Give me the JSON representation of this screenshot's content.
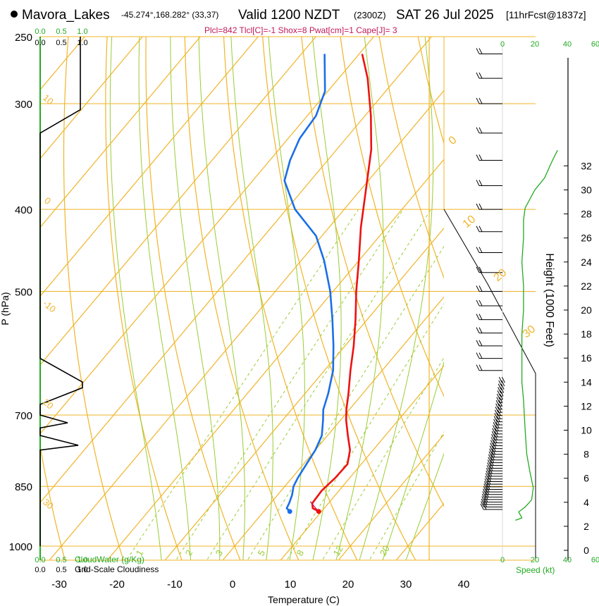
{
  "header": {
    "location": "Mavora_Lakes",
    "coords": "-45.274°,168.282° (33,37)",
    "valid": "Valid 1200 NZDT",
    "utc": "(2300Z)",
    "date": "SAT 26 Jul 2025",
    "forecast": "[11hrFcst@1837z]",
    "indices": "Plcl=842 Tlcl[C]=-1 Shox=8 Pwat[cm]=1 Cape[J]= 3"
  },
  "colors": {
    "temperature": "#ee1111",
    "dewpoint": "#1a6fe8",
    "dry_adiabat": "#f0b428",
    "moist_adiabat": "#99cc33",
    "mixing_ratio": "#99cc33",
    "cloud": "#228b22",
    "black": "#000000"
  },
  "chart_data": {
    "type": "line",
    "title": "Skew-T Log-P Sounding",
    "xlabel": "Temperature (C)",
    "ylabel": "P (hPa)",
    "right_ylabel": "Height (1000 Feet)",
    "x_ticks": [
      -30,
      -20,
      -10,
      0,
      10,
      20,
      30,
      40
    ],
    "p_ticks": [
      250,
      300,
      400,
      500,
      700,
      850,
      1000
    ],
    "height_ticks": [
      0,
      2,
      4,
      6,
      8,
      10,
      12,
      14,
      16,
      18,
      20,
      22,
      24,
      26,
      28,
      30,
      32
    ],
    "temperature": {
      "name": "Temperature",
      "p": [
        910,
        902,
        890,
        860,
        830,
        800,
        770,
        740,
        710,
        690,
        660,
        620,
        580,
        540,
        500,
        460,
        420,
        380,
        340,
        310,
        280,
        262
      ],
      "t": [
        9.5,
        8.0,
        7.2,
        7.0,
        7.5,
        7.6,
        6.0,
        3.5,
        1.0,
        -0.5,
        -2.5,
        -5.5,
        -8.5,
        -12.0,
        -16.0,
        -20.0,
        -24.5,
        -29.0,
        -34.0,
        -39.0,
        -45.0,
        -49.5
      ]
    },
    "dewpoint": {
      "name": "Dewpoint",
      "p": [
        910,
        902,
        890,
        870,
        850,
        830,
        800,
        770,
        740,
        710,
        690,
        660,
        620,
        580,
        540,
        500,
        460,
        430,
        400,
        370,
        350,
        330,
        310,
        290,
        262
      ],
      "td": [
        4.5,
        3.5,
        3.2,
        2.5,
        1.5,
        1.0,
        0.5,
        0.0,
        -1.0,
        -3.0,
        -4.5,
        -6.0,
        -8.5,
        -12.0,
        -16.0,
        -20.5,
        -26.0,
        -31.0,
        -38.5,
        -44.5,
        -46.5,
        -48.0,
        -48.5,
        -50.5,
        -56.0
      ]
    },
    "dry_adiabat_labels": [
      "-10",
      "0",
      "10",
      "20",
      "30"
    ],
    "dry_adiabat_labels_left": [
      "30",
      "20",
      "10",
      "0",
      "-10"
    ],
    "mixing_ratio_labels": [
      "1",
      "2",
      "3",
      "5",
      "8",
      "12",
      "20"
    ],
    "cloud_axis": {
      "water_ticks": [
        "0.0",
        "0.5",
        "1.0"
      ],
      "cover_ticks": [
        "0.0",
        "0.5",
        "1.0"
      ],
      "water_label": "CloudWater (g/Kg)",
      "cover_label": "Grid-Scale Cloudiness",
      "cloudiness_profile": {
        "p": [
          250,
          300,
          305,
          325,
          335,
          560,
          600,
          640,
          650,
          680,
          700,
          715,
          725,
          740,
          760,
          770,
          1000
        ],
        "value": [
          0.95,
          0.95,
          0.95,
          0.0,
          0.0,
          0.0,
          0.0,
          1.0,
          1.0,
          0.0,
          0.0,
          0.65,
          0.0,
          0.0,
          0.9,
          0.0,
          0.0
        ]
      }
    },
    "wind_axis": {
      "speed_ticks": [
        "0",
        "20",
        "40",
        "60"
      ],
      "speed_label": "Speed (kt)",
      "speed_profile": {
        "h": [
          2.5,
          2.7,
          3.2,
          3.6,
          4.2,
          5.2,
          6.5,
          8.0,
          10.0,
          12.5,
          14.0,
          16.0,
          18.0,
          20.0,
          22.0,
          24.0,
          26.0,
          27.5,
          28.5,
          30.0,
          31.0,
          32.5,
          33.3
        ],
        "kt": [
          8,
          12,
          10,
          14,
          18,
          19,
          17,
          15,
          14,
          13,
          12,
          12,
          12,
          13,
          13,
          12,
          13,
          13,
          14,
          20,
          26,
          31,
          34
        ]
      }
    }
  }
}
